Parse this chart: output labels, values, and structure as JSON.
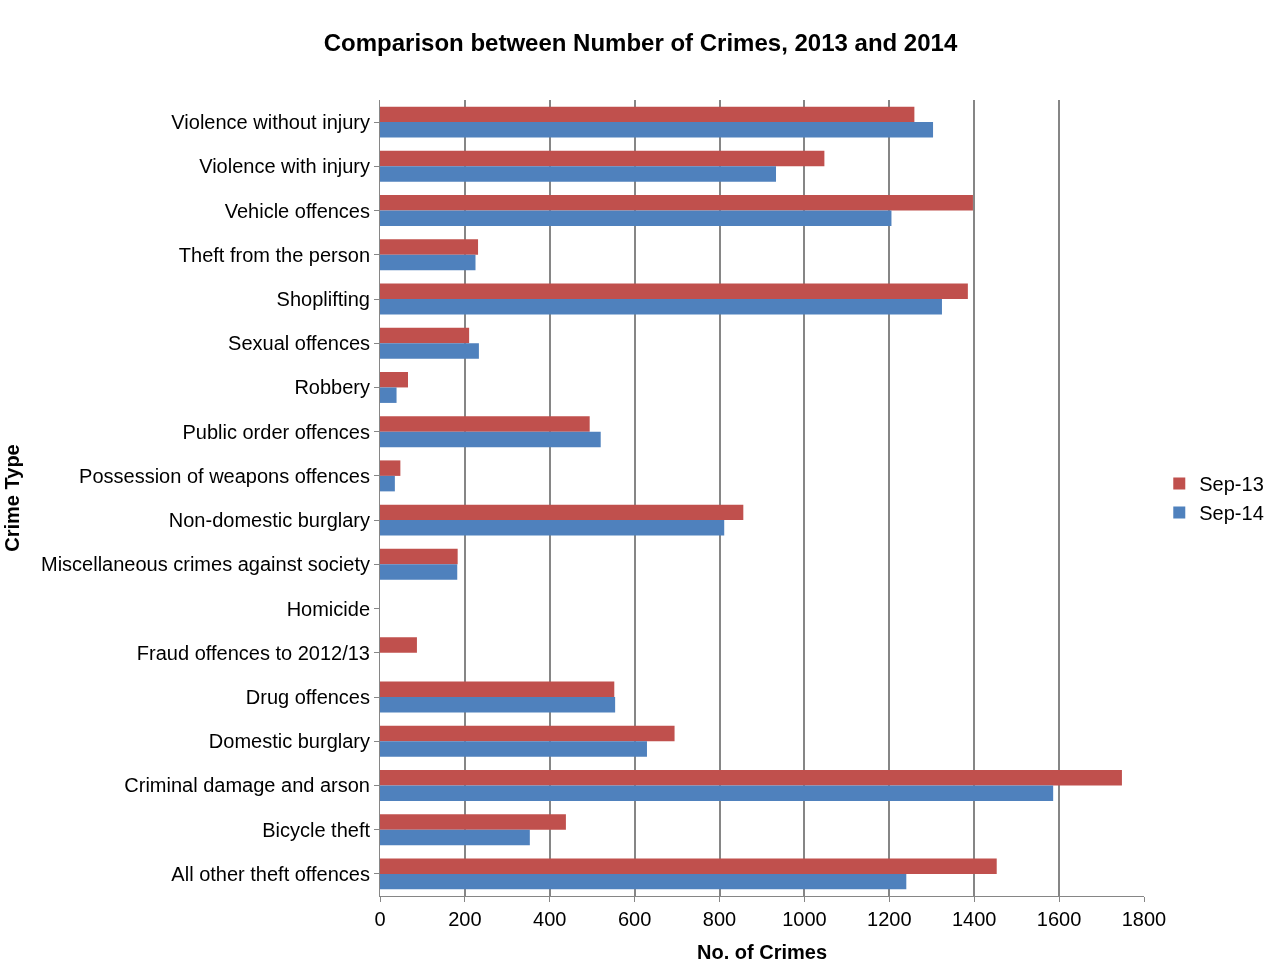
{
  "chart_data": {
    "type": "bar",
    "orientation": "horizontal",
    "title": "Comparison between Number of Crimes, 2013 and 2014",
    "xlabel": "No. of Crimes",
    "ylabel": "Crime Type",
    "categories": [
      "Violence without injury",
      "Violence with injury",
      "Vehicle offences",
      "Theft from the person",
      "Shoplifting",
      "Sexual offences",
      "Robbery",
      "Public order offences",
      "Possession of weapons offences",
      "Non-domestic burglary",
      "Miscellaneous crimes against society",
      "Homicide",
      "Fraud offences to 2012/13",
      "Drug offences",
      "Domestic burglary",
      "Criminal damage and arson",
      "Bicycle theft",
      "All other theft offences"
    ],
    "series": [
      {
        "name": "Sep-13",
        "color": "#c0504d",
        "values": [
          1259,
          1047,
          1397,
          231,
          1385,
          210,
          66,
          494,
          48,
          856,
          183,
          null,
          87,
          552,
          694,
          1748,
          438,
          1453
        ]
      },
      {
        "name": "Sep-14",
        "color": "#4f81bd",
        "values": [
          1303,
          933,
          1205,
          225,
          1324,
          233,
          39,
          520,
          35,
          811,
          182,
          null,
          0,
          554,
          629,
          1586,
          353,
          1240
        ]
      }
    ],
    "xlim": [
      0,
      1800
    ],
    "xticks": [
      0,
      200,
      400,
      600,
      800,
      1000,
      1200,
      1400,
      1600,
      1800
    ],
    "grid": "x",
    "legend": "right"
  }
}
